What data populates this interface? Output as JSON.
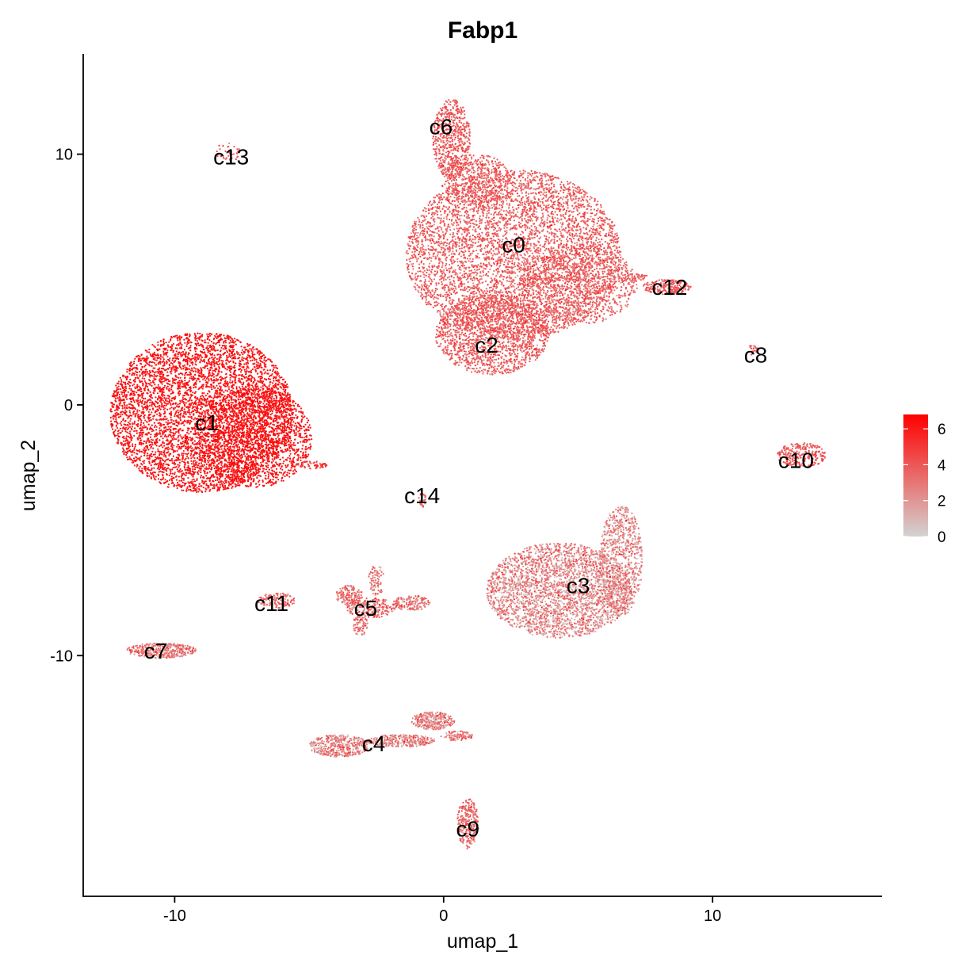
{
  "chart_data": {
    "type": "scatter",
    "title": "Fabp1",
    "xlabel": "umap_1",
    "ylabel": "umap_2",
    "xlim": [
      -13.4,
      16.3
    ],
    "ylim": [
      -19.6,
      14.0
    ],
    "x_ticks": [
      -10,
      0,
      10
    ],
    "y_ticks": [
      -10,
      0,
      10
    ],
    "x_tick_labels": [
      "-10",
      "0",
      "10"
    ],
    "y_tick_labels": [
      "-10",
      "0",
      "10"
    ],
    "grid": false,
    "legend": {
      "placement": "right",
      "type": "colorbar",
      "ticks": [
        0,
        2,
        4,
        6
      ],
      "tick_labels": [
        "0",
        "2",
        "4",
        "6"
      ],
      "range": [
        0,
        6.8
      ],
      "low_color": "#d3d3d3",
      "high_color": "#ff0000"
    },
    "cluster_labels": [
      {
        "text": "c0",
        "x": 2.6,
        "y": 6.4
      },
      {
        "text": "c1",
        "x": -8.8,
        "y": -0.7
      },
      {
        "text": "c2",
        "x": 1.6,
        "y": 2.4
      },
      {
        "text": "c3",
        "x": 5.0,
        "y": -7.2
      },
      {
        "text": "c4",
        "x": -2.6,
        "y": -13.5
      },
      {
        "text": "c5",
        "x": -2.9,
        "y": -8.1
      },
      {
        "text": "c6",
        "x": -0.1,
        "y": 11.1
      },
      {
        "text": "c7",
        "x": -10.7,
        "y": -9.8
      },
      {
        "text": "c8",
        "x": 11.6,
        "y": 2.0
      },
      {
        "text": "c9",
        "x": 0.9,
        "y": -16.9
      },
      {
        "text": "c10",
        "x": 13.1,
        "y": -2.2
      },
      {
        "text": "c11",
        "x": -6.4,
        "y": -7.9
      },
      {
        "text": "c12",
        "x": 8.4,
        "y": 4.7
      },
      {
        "text": "c13",
        "x": -7.9,
        "y": 9.9
      },
      {
        "text": "c14",
        "x": -0.8,
        "y": -3.6
      }
    ],
    "point_groups": [
      {
        "cluster": "c1",
        "shape": "ellipse",
        "cx": -9.0,
        "cy": -0.3,
        "rx": 3.4,
        "ry": 3.2,
        "n": 5200,
        "expr_mean": 6.2,
        "expr_sd": 0.4
      },
      {
        "cluster": "c1",
        "shape": "ellipse",
        "cx": -7.0,
        "cy": -1.3,
        "rx": 2.1,
        "ry": 2.0,
        "n": 1600,
        "expr_mean": 6.3,
        "expr_sd": 0.4
      },
      {
        "cluster": "c0",
        "shape": "ellipse",
        "cx": 2.6,
        "cy": 6.0,
        "rx": 4.0,
        "ry": 3.4,
        "n": 5200,
        "expr_mean": 3.8,
        "expr_sd": 0.8
      },
      {
        "cluster": "c0",
        "shape": "ellipse",
        "cx": 5.0,
        "cy": 4.8,
        "rx": 2.2,
        "ry": 1.6,
        "n": 1000,
        "expr_mean": 3.7,
        "expr_sd": 0.8
      },
      {
        "cluster": "c2",
        "shape": "ellipse",
        "cx": 1.8,
        "cy": 2.8,
        "rx": 2.1,
        "ry": 1.6,
        "n": 1600,
        "expr_mean": 3.9,
        "expr_sd": 0.8
      },
      {
        "cluster": "c6",
        "shape": "ellipse",
        "cx": 0.3,
        "cy": 10.6,
        "rx": 0.7,
        "ry": 1.6,
        "n": 600,
        "expr_mean": 4.0,
        "expr_sd": 0.7
      },
      {
        "cluster": "c0",
        "shape": "ellipse",
        "cx": 1.2,
        "cy": 9.0,
        "rx": 1.3,
        "ry": 1.0,
        "n": 500,
        "expr_mean": 3.8,
        "expr_sd": 0.8
      },
      {
        "cluster": "c12",
        "shape": "ellipse",
        "cx": 8.3,
        "cy": 4.7,
        "rx": 0.9,
        "ry": 0.3,
        "n": 220,
        "expr_mean": 4.0,
        "expr_sd": 0.6
      },
      {
        "cluster": "c12",
        "shape": "ellipse",
        "cx": 7.0,
        "cy": 5.1,
        "rx": 0.6,
        "ry": 0.15,
        "n": 60,
        "expr_mean": 3.8,
        "expr_sd": 0.6
      },
      {
        "cluster": "c8",
        "shape": "ellipse",
        "cx": 11.5,
        "cy": 2.2,
        "rx": 0.2,
        "ry": 0.2,
        "n": 20,
        "expr_mean": 3.9,
        "expr_sd": 0.6
      },
      {
        "cluster": "c10",
        "shape": "ellipse",
        "cx": 13.3,
        "cy": -2.0,
        "rx": 0.9,
        "ry": 0.5,
        "n": 260,
        "expr_mean": 4.0,
        "expr_sd": 0.6
      },
      {
        "cluster": "c13",
        "shape": "ellipse",
        "cx": -8.0,
        "cy": 10.1,
        "rx": 0.5,
        "ry": 0.4,
        "n": 40,
        "expr_mean": 4.0,
        "expr_sd": 0.6
      },
      {
        "cluster": "c14",
        "shape": "ellipse",
        "cx": -0.8,
        "cy": -3.8,
        "rx": 0.15,
        "ry": 0.3,
        "n": 30,
        "expr_mean": 3.8,
        "expr_sd": 0.6
      },
      {
        "cluster": "c1",
        "shape": "ellipse",
        "cx": -4.9,
        "cy": -2.4,
        "rx": 0.6,
        "ry": 0.15,
        "n": 60,
        "expr_mean": 5.0,
        "expr_sd": 0.6
      },
      {
        "cluster": "c3",
        "shape": "ellipse",
        "cx": 4.3,
        "cy": -7.4,
        "rx": 2.7,
        "ry": 1.9,
        "n": 3000,
        "expr_mean": 2.4,
        "expr_sd": 1.3
      },
      {
        "cluster": "c3",
        "shape": "ellipse",
        "cx": 6.6,
        "cy": -6.2,
        "rx": 0.8,
        "ry": 2.2,
        "n": 800,
        "expr_mean": 2.4,
        "expr_sd": 1.3
      },
      {
        "cluster": "c5",
        "shape": "ellipse",
        "cx": -3.5,
        "cy": -7.6,
        "rx": 0.5,
        "ry": 0.4,
        "n": 160,
        "expr_mean": 3.2,
        "expr_sd": 1.0
      },
      {
        "cluster": "c5",
        "shape": "ellipse",
        "cx": -2.7,
        "cy": -8.1,
        "rx": 0.9,
        "ry": 0.4,
        "n": 200,
        "expr_mean": 3.2,
        "expr_sd": 1.0
      },
      {
        "cluster": "c5",
        "shape": "ellipse",
        "cx": -1.2,
        "cy": -7.9,
        "rx": 0.7,
        "ry": 0.3,
        "n": 150,
        "expr_mean": 3.2,
        "expr_sd": 1.0
      },
      {
        "cluster": "c5",
        "shape": "ellipse",
        "cx": -2.5,
        "cy": -7.0,
        "rx": 0.3,
        "ry": 0.6,
        "n": 80,
        "expr_mean": 3.2,
        "expr_sd": 1.0
      },
      {
        "cluster": "c5",
        "shape": "ellipse",
        "cx": -3.1,
        "cy": -8.8,
        "rx": 0.3,
        "ry": 0.4,
        "n": 80,
        "expr_mean": 3.2,
        "expr_sd": 1.0
      },
      {
        "cluster": "c11",
        "shape": "ellipse",
        "cx": -6.2,
        "cy": -7.8,
        "rx": 0.7,
        "ry": 0.3,
        "n": 120,
        "expr_mean": 3.5,
        "expr_sd": 0.8
      },
      {
        "cluster": "c7",
        "shape": "ellipse",
        "cx": -10.5,
        "cy": -9.8,
        "rx": 1.3,
        "ry": 0.3,
        "n": 380,
        "expr_mean": 3.0,
        "expr_sd": 1.2
      },
      {
        "cluster": "c4",
        "shape": "ellipse",
        "cx": -3.9,
        "cy": -13.6,
        "rx": 1.1,
        "ry": 0.45,
        "n": 420,
        "expr_mean": 2.7,
        "expr_sd": 1.3
      },
      {
        "cluster": "c4",
        "shape": "ellipse",
        "cx": -1.6,
        "cy": -13.4,
        "rx": 1.3,
        "ry": 0.25,
        "n": 300,
        "expr_mean": 2.7,
        "expr_sd": 1.3
      },
      {
        "cluster": "c4",
        "shape": "ellipse",
        "cx": -0.4,
        "cy": -12.6,
        "rx": 0.8,
        "ry": 0.35,
        "n": 300,
        "expr_mean": 2.6,
        "expr_sd": 1.3
      },
      {
        "cluster": "c4",
        "shape": "ellipse",
        "cx": 0.5,
        "cy": -13.2,
        "rx": 0.6,
        "ry": 0.2,
        "n": 100,
        "expr_mean": 2.6,
        "expr_sd": 1.3
      },
      {
        "cluster": "c9",
        "shape": "ellipse",
        "cx": 0.9,
        "cy": -16.7,
        "rx": 0.4,
        "ry": 1.0,
        "n": 260,
        "expr_mean": 3.5,
        "expr_sd": 0.9
      }
    ]
  }
}
